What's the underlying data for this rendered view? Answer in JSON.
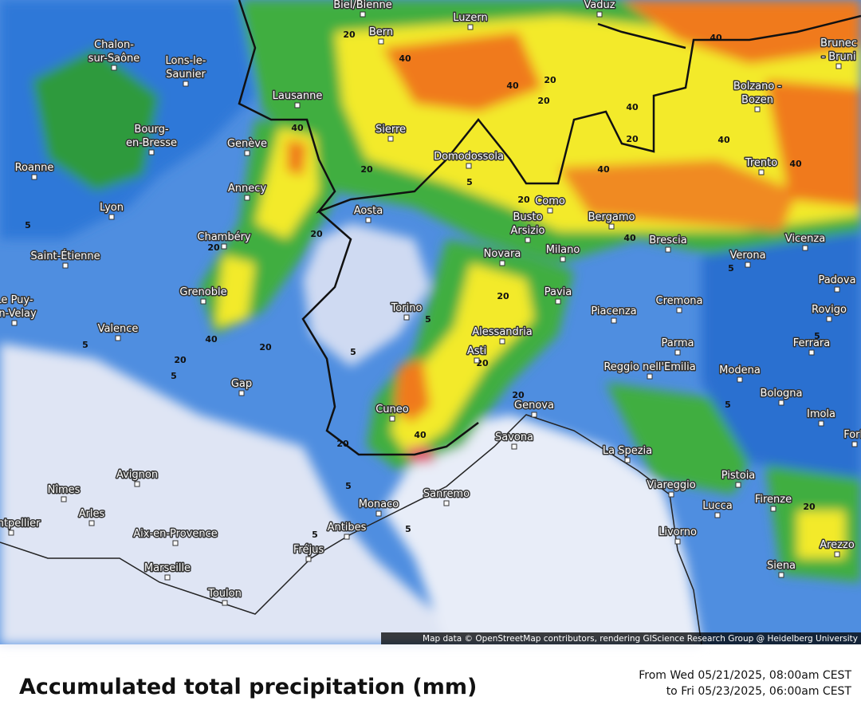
{
  "map": {
    "cities": [
      [
        "Biel/Bienne"
      ],
      [
        "Luzern"
      ],
      [
        "Vaduz"
      ],
      [
        "Brunec",
        "- Bruni"
      ],
      [
        "Bern"
      ],
      [
        "Chalon-",
        "sur-Saône"
      ],
      [
        "Lons-le-",
        "Saunier"
      ],
      [
        "Bolzano -",
        "Bozen"
      ],
      [
        "Lausanne"
      ],
      [
        "Sierre"
      ],
      [
        "Bourg-",
        "en-Bresse"
      ],
      [
        "Genève"
      ],
      [
        "Domodossola"
      ],
      [
        "Trento"
      ],
      [
        "Roanne"
      ],
      [
        "Annecy"
      ],
      [
        "Aosta"
      ],
      [
        "Como"
      ],
      [
        "Lyon"
      ],
      [
        "Busto",
        "Arsizio"
      ],
      [
        "Bergamo"
      ],
      [
        "Chambéry"
      ],
      [
        "Saint-Étienne"
      ],
      [
        "Brescia"
      ],
      [
        "Vicenza"
      ],
      [
        "Novara"
      ],
      [
        "Milano"
      ],
      [
        "Verona"
      ],
      [
        "Padova"
      ],
      [
        "Grenoble"
      ],
      [
        "Le Puy-",
        "en-Velay"
      ],
      [
        "Pavia"
      ],
      [
        "Cremona"
      ],
      [
        "Torino"
      ],
      [
        "Piacenza"
      ],
      [
        "Rovigo"
      ],
      [
        "Valence"
      ],
      [
        "Alessandria"
      ],
      [
        "Parma"
      ],
      [
        "Ferrara"
      ],
      [
        "Asti"
      ],
      [
        "Reggio nell'Emilia"
      ],
      [
        "Modena"
      ],
      [
        "Gap"
      ],
      [
        "Bologna"
      ],
      [
        "Genova"
      ],
      [
        "Cuneo"
      ],
      [
        "Imola"
      ],
      [
        "Savona"
      ],
      [
        "Forlì"
      ],
      [
        "La Spezia"
      ],
      [
        "Avignon"
      ],
      [
        "Pistoia"
      ],
      [
        "Nîmes"
      ],
      [
        "Viareggio"
      ],
      [
        "Sanremo"
      ],
      [
        "Monaco"
      ],
      [
        "Lucca"
      ],
      [
        "Firenze"
      ],
      [
        "Arles"
      ],
      [
        "Montpellier"
      ],
      [
        "Antibes"
      ],
      [
        "Livorno"
      ],
      [
        "Aix-en-Provence"
      ],
      [
        "Arezzo"
      ],
      [
        "Fréjus"
      ],
      [
        "Siena"
      ],
      [
        "Marseille"
      ],
      [
        "Toulon"
      ]
    ],
    "contour_labels": [
      40,
      40,
      20,
      40,
      20,
      20,
      40,
      20,
      40,
      40,
      40,
      40,
      20,
      5,
      20,
      20,
      40,
      20,
      5,
      40,
      20,
      5,
      5,
      5,
      20,
      20,
      20,
      5,
      40,
      20,
      20,
      5,
      5,
      5,
      5,
      5,
      20,
      5
    ],
    "attribution": "Map data © OpenStreetMap contributors, rendering GIScience Research Group @ Heidelberg University"
  },
  "footer": {
    "title": "Accumulated total precipitation (mm)",
    "period": [
      "From Wed 05/21/2025, 08:00am CEST",
      "to Fri 05/23/2025, 06:00am CEST"
    ]
  }
}
